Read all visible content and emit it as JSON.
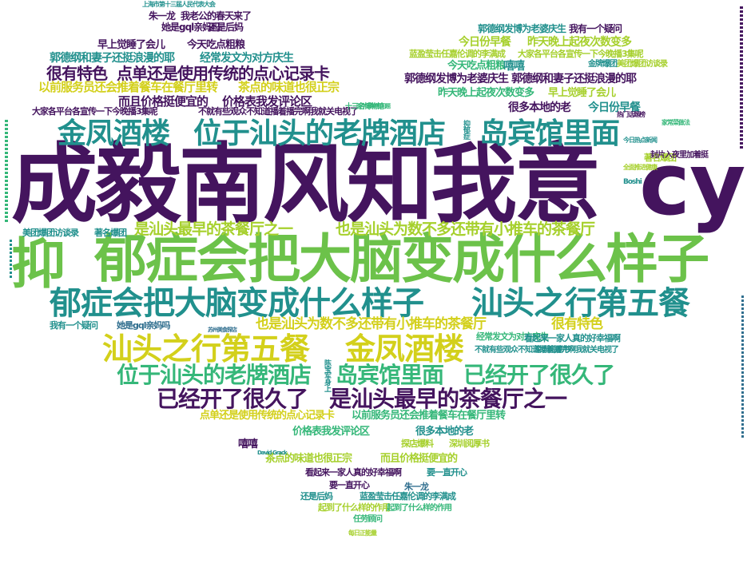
{
  "palette": {
    "purple": "#44145e",
    "teal": "#21908d",
    "green": "#35b779",
    "lime": "#a6d02c",
    "yellow": "#d3d01b",
    "lightgreen": "#6cc24a",
    "blue": "#2f6e8e"
  },
  "words": [
    {
      "text": "成毅南风知我意",
      "color": "purple"
    },
    {
      "text": "cy",
      "color": "purple"
    },
    {
      "text": "抑",
      "color": "lightgreen"
    },
    {
      "text": "郁症会把大脑变成什么样子",
      "color": "lightgreen"
    },
    {
      "text": "金凤酒楼",
      "color": "teal"
    },
    {
      "text": "位于汕头的老牌酒店",
      "color": "teal"
    },
    {
      "text": "岛宾馆里面",
      "color": "teal"
    },
    {
      "text": "郁症会把大脑变成什么样子",
      "color": "teal"
    },
    {
      "text": "汕头之行第五餐",
      "color": "teal"
    },
    {
      "text": "汕头之行第五餐",
      "color": "yellow"
    },
    {
      "text": "金凤酒楼",
      "color": "yellow"
    },
    {
      "text": "位于汕头的老牌酒店",
      "color": "green"
    },
    {
      "text": "岛宾馆里面",
      "color": "green"
    },
    {
      "text": "已经开了很久了",
      "color": "green"
    },
    {
      "text": "已经开了很久了",
      "color": "purple"
    },
    {
      "text": "是汕头最早的茶餐厅之一",
      "color": "purple"
    },
    {
      "text": "是汕头最早的茶餐厅之一",
      "color": "lime"
    },
    {
      "text": "也是汕头为数不多还带有小推车的茶餐厅",
      "color": "lime"
    },
    {
      "text": "也是汕头为数不多还带有小推车的茶餐厅",
      "color": "yellow"
    },
    {
      "text": "很有特色",
      "color": "yellow"
    },
    {
      "text": "很有特色",
      "color": "purple"
    },
    {
      "text": "点单还是使用传统的点心记录卡",
      "color": "purple"
    },
    {
      "text": "点单还是使用传统的点心记录卡",
      "color": "yellow"
    },
    {
      "text": "以前服务员还会推着餐车在餐厅里转",
      "color": "yellow"
    },
    {
      "text": "以前服务员还会推着餐车在餐厅里转",
      "color": "green"
    },
    {
      "text": "茶点的味道也很正宗",
      "color": "yellow"
    },
    {
      "text": "茶点的味道也很正宗",
      "color": "lime"
    },
    {
      "text": "而且价格挺便宜的",
      "color": "purple"
    },
    {
      "text": "而且价格挺便宜的",
      "color": "lime"
    },
    {
      "text": "价格表我发评论区",
      "color": "purple"
    },
    {
      "text": "价格表我发评论区",
      "color": "green"
    },
    {
      "text": "很多本地的老",
      "color": "teal"
    },
    {
      "text": "很多本地的老",
      "color": "purple"
    },
    {
      "text": "今日份早餐",
      "color": "lime"
    },
    {
      "text": "今日份早餐",
      "color": "teal"
    },
    {
      "text": "昨天晚上起夜次数变多",
      "color": "lime"
    },
    {
      "text": "昨天晚上起夜次数变多",
      "color": "green"
    },
    {
      "text": "早上觉睡了会儿",
      "color": "purple"
    },
    {
      "text": "早上觉睡了会儿",
      "color": "lime"
    },
    {
      "text": "今天吃点粗粮",
      "color": "purple"
    },
    {
      "text": "今天吃点粗粮",
      "color": "green"
    },
    {
      "text": "郭德纲和妻子还挺浪漫的耶",
      "color": "teal"
    },
    {
      "text": "郭德纲和妻子还挺浪漫的耶",
      "color": "purple"
    },
    {
      "text": "经常发文为对方庆生",
      "color": "teal"
    },
    {
      "text": "经常发文为对方庆生",
      "color": "green"
    },
    {
      "text": "郭德纲发博为老婆庆生",
      "color": "purple"
    },
    {
      "text": "郭德纲发博为老婆庆生",
      "color": "teal"
    },
    {
      "text": "嘻嘻",
      "color": "teal"
    },
    {
      "text": "嘻嘻",
      "color": "purple"
    },
    {
      "text": "朱一龙",
      "color": "purple"
    },
    {
      "text": "朱一龙",
      "color": "blue"
    },
    {
      "text": "我老公的春天来了",
      "color": "purple"
    },
    {
      "text": "她是gql亲妈吗",
      "color": "purple"
    },
    {
      "text": "她是gql亲妈吗",
      "color": "blue"
    },
    {
      "text": "还是后妈",
      "color": "purple"
    },
    {
      "text": "还是后妈",
      "color": "teal"
    },
    {
      "text": "我有一个疑问",
      "color": "purple"
    },
    {
      "text": "我有一个疑问",
      "color": "teal"
    },
    {
      "text": "看起来一家人真的好幸福啊",
      "color": "purple"
    },
    {
      "text": "看起来一家人真的好幸福啊",
      "color": "teal"
    },
    {
      "text": "要一直开心",
      "color": "purple"
    },
    {
      "text": "要一直开心",
      "color": "teal"
    },
    {
      "text": "蓝盈莹击任嘉伦调的李满成",
      "color": "lime"
    },
    {
      "text": "蓝盈莹击任嘉伦调的李满成",
      "color": "teal"
    },
    {
      "text": "大家各平台各宣传一下今晚播3集呢",
      "color": "lime"
    },
    {
      "text": "大家各平台各宣传一下今晚播3集呢",
      "color": "purple"
    },
    {
      "text": "不就有些观众不知道播着播完啊我就关电视了",
      "color": "purple"
    },
    {
      "text": "不就有些观众不知道播着播完啊我就关电视了",
      "color": "teal"
    },
    {
      "text": "美团爆团访谈录",
      "color": "teal"
    },
    {
      "text": "美团爆团访谈录",
      "color": "lime"
    },
    {
      "text": "著名爆团",
      "color": "teal"
    },
    {
      "text": "著名爆团",
      "color": "lime"
    },
    {
      "text": "金牌爆团",
      "color": "teal"
    },
    {
      "text": "起到了什么样的作用",
      "color": "lime"
    },
    {
      "text": "起到了什么样的作用",
      "color": "green"
    },
    {
      "text": "任劳顾问",
      "color": "green"
    },
    {
      "text": "探店爆料",
      "color": "lime"
    },
    {
      "text": "深圳阅厚书",
      "color": "teal"
    },
    {
      "text": "深圳阅厚书",
      "color": "lime"
    },
    {
      "text": "封片入夜里加着挺",
      "color": "purple"
    },
    {
      "text": "抑郁症",
      "color": "teal"
    },
    {
      "text": "陈宝军身上",
      "color": "teal"
    },
    {
      "text": "十三名博物馆",
      "color": "green"
    },
    {
      "text": "Boshi",
      "color": "teal"
    },
    {
      "text": "David Grack",
      "color": "teal"
    },
    {
      "text": "上海市第十三届人民代表大会",
      "color": "teal"
    },
    {
      "text": "苏州美食探店",
      "color": "blue"
    },
    {
      "text": "医学家解答问题",
      "color": "green"
    },
    {
      "text": "全面推进健康",
      "color": "lime"
    },
    {
      "text": "热门话题榜",
      "color": "purple"
    },
    {
      "text": "家常菜做法",
      "color": "green"
    },
    {
      "text": "今日热点新闻",
      "color": "teal"
    },
    {
      "text": "每日正能量",
      "color": "lime"
    }
  ]
}
